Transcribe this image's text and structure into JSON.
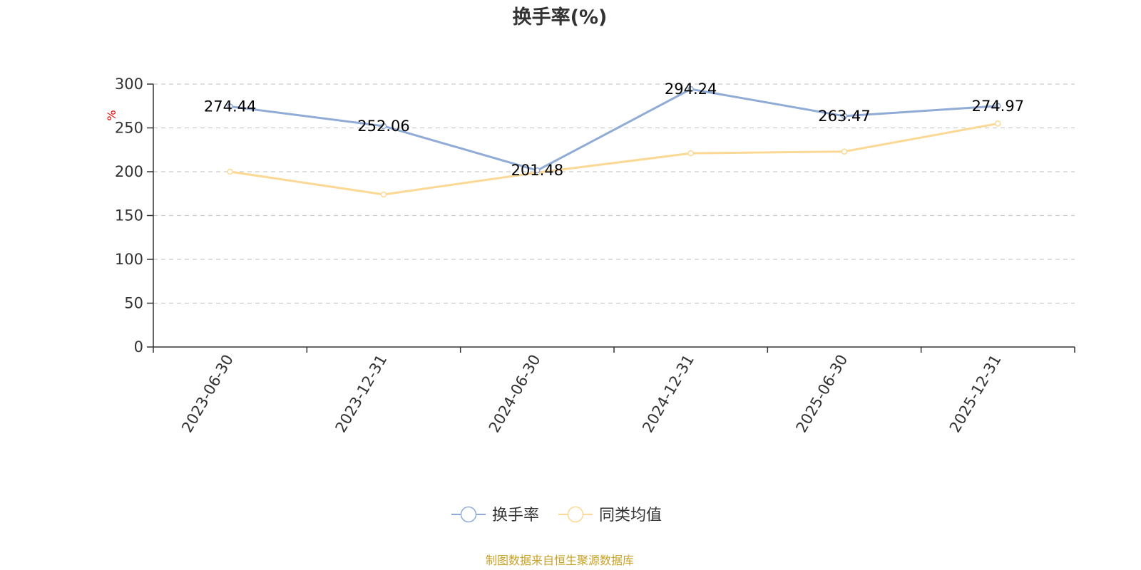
{
  "chart_data": {
    "type": "line",
    "title": "换手率(%)",
    "ylabel": "%",
    "xlabel": "",
    "categories": [
      "2023-06-30",
      "2023-12-31",
      "2024-06-30",
      "2024-12-31",
      "2025-06-30",
      "2025-12-31"
    ],
    "ylim": [
      0,
      300
    ],
    "yticks": [
      0,
      50,
      100,
      150,
      200,
      250,
      300
    ],
    "grid": "horizontal dashed",
    "legend_position": "bottom-center",
    "series": [
      {
        "name": "换手率",
        "values": [
          274.44,
          252.06,
          201.48,
          294.24,
          263.47,
          274.97
        ],
        "labels": [
          "274.44",
          "252.06",
          "201.48",
          "294.24",
          "263.47",
          "274.97"
        ],
        "color": "#8fabd6"
      },
      {
        "name": "同类均值",
        "values": [
          200,
          174,
          199,
          221,
          223,
          255
        ],
        "color": "#fcd895"
      }
    ],
    "source_note": "制图数据来自恒生聚源数据库"
  }
}
